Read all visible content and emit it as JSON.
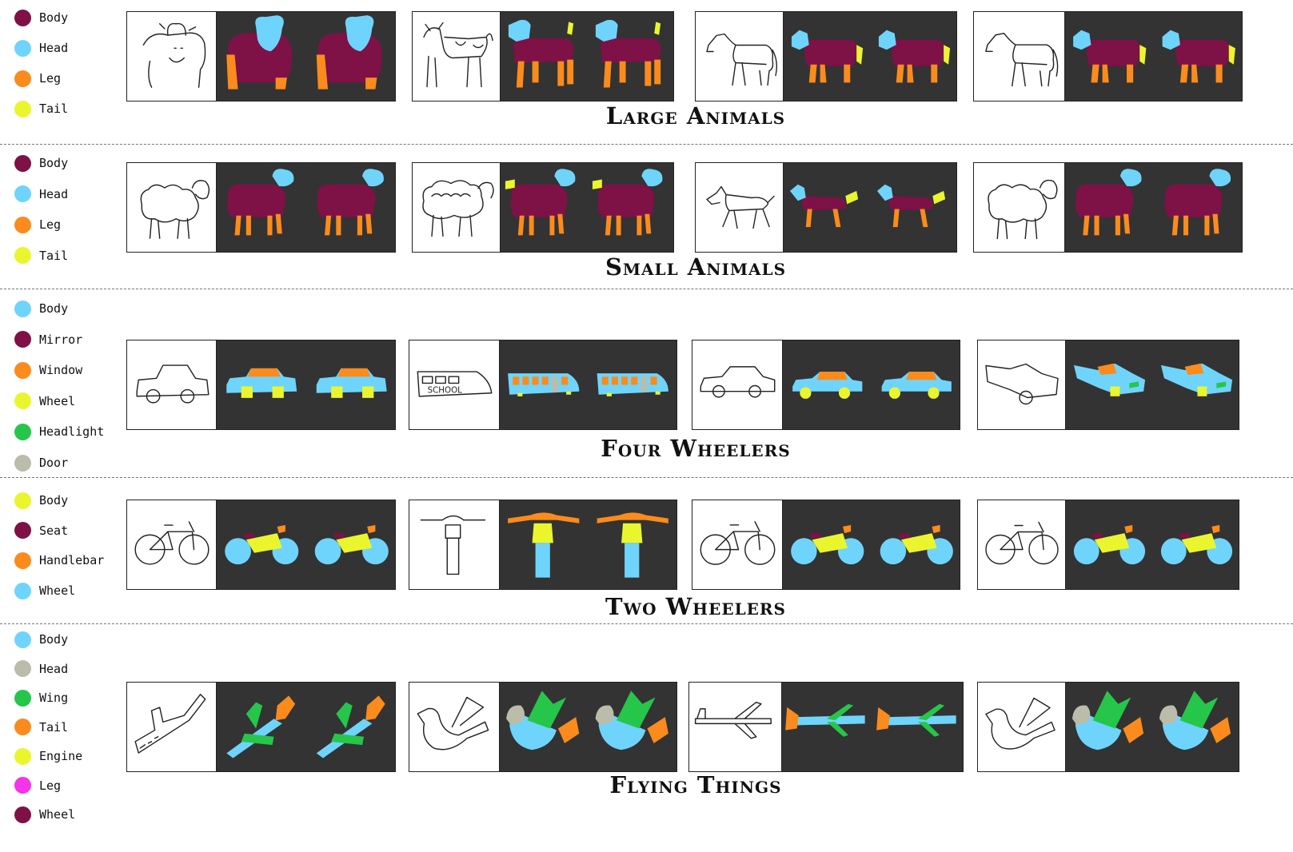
{
  "colors": {
    "maroon": "#7e1146",
    "cyan": "#6fd4fb",
    "orange": "#fb8b1c",
    "yellow": "#eaf52d",
    "green": "#26c64a",
    "gray": "#bcbcaa",
    "magenta": "#f533e8",
    "panel_bg": "#333333"
  },
  "rows": [
    {
      "title": "Large Animals",
      "legend": [
        {
          "label": "Body",
          "color": "#7e1146"
        },
        {
          "label": "Head",
          "color": "#6fd4fb"
        },
        {
          "label": "Leg",
          "color": "#fb8b1c"
        },
        {
          "label": "Tail",
          "color": "#eaf52d"
        }
      ],
      "examples": [
        "cow",
        "cow-spotted",
        "horse",
        "horse-2"
      ]
    },
    {
      "title": "Small Animals",
      "legend": [
        {
          "label": "Body",
          "color": "#7e1146"
        },
        {
          "label": "Head",
          "color": "#6fd4fb"
        },
        {
          "label": "Leg",
          "color": "#fb8b1c"
        },
        {
          "label": "Tail",
          "color": "#eaf52d"
        }
      ],
      "examples": [
        "sheep",
        "sheep-woolly",
        "dog",
        "sheep-2"
      ]
    },
    {
      "title": "Four Wheelers",
      "legend": [
        {
          "label": "Body",
          "color": "#6fd4fb"
        },
        {
          "label": "Mirror",
          "color": "#7e1146"
        },
        {
          "label": "Window",
          "color": "#fb8b1c"
        },
        {
          "label": "Wheel",
          "color": "#eaf52d"
        },
        {
          "label": "Headlight",
          "color": "#26c64a"
        },
        {
          "label": "Door",
          "color": "#bcbcaa"
        }
      ],
      "examples": [
        "car",
        "school-bus",
        "sedan",
        "pickup"
      ],
      "sketch_text": "SCHOOL"
    },
    {
      "title": "Two Wheelers",
      "legend": [
        {
          "label": "Body",
          "color": "#eaf52d"
        },
        {
          "label": "Seat",
          "color": "#7e1146"
        },
        {
          "label": "Handlebar",
          "color": "#fb8b1c"
        },
        {
          "label": "Wheel",
          "color": "#6fd4fb"
        }
      ],
      "examples": [
        "bicycle",
        "motorbike-front",
        "bicycle-2",
        "bicycle-3"
      ]
    },
    {
      "title": "Flying Things",
      "legend": [
        {
          "label": "Body",
          "color": "#6fd4fb"
        },
        {
          "label": "Head",
          "color": "#bcbcaa"
        },
        {
          "label": "Wing",
          "color": "#26c64a"
        },
        {
          "label": "Tail",
          "color": "#fb8b1c"
        },
        {
          "label": "Engine",
          "color": "#eaf52d"
        },
        {
          "label": "Leg",
          "color": "#f533e8"
        },
        {
          "label": "Wheel",
          "color": "#7e1146"
        }
      ],
      "examples": [
        "airplane",
        "dove",
        "jet",
        "bird"
      ]
    }
  ]
}
